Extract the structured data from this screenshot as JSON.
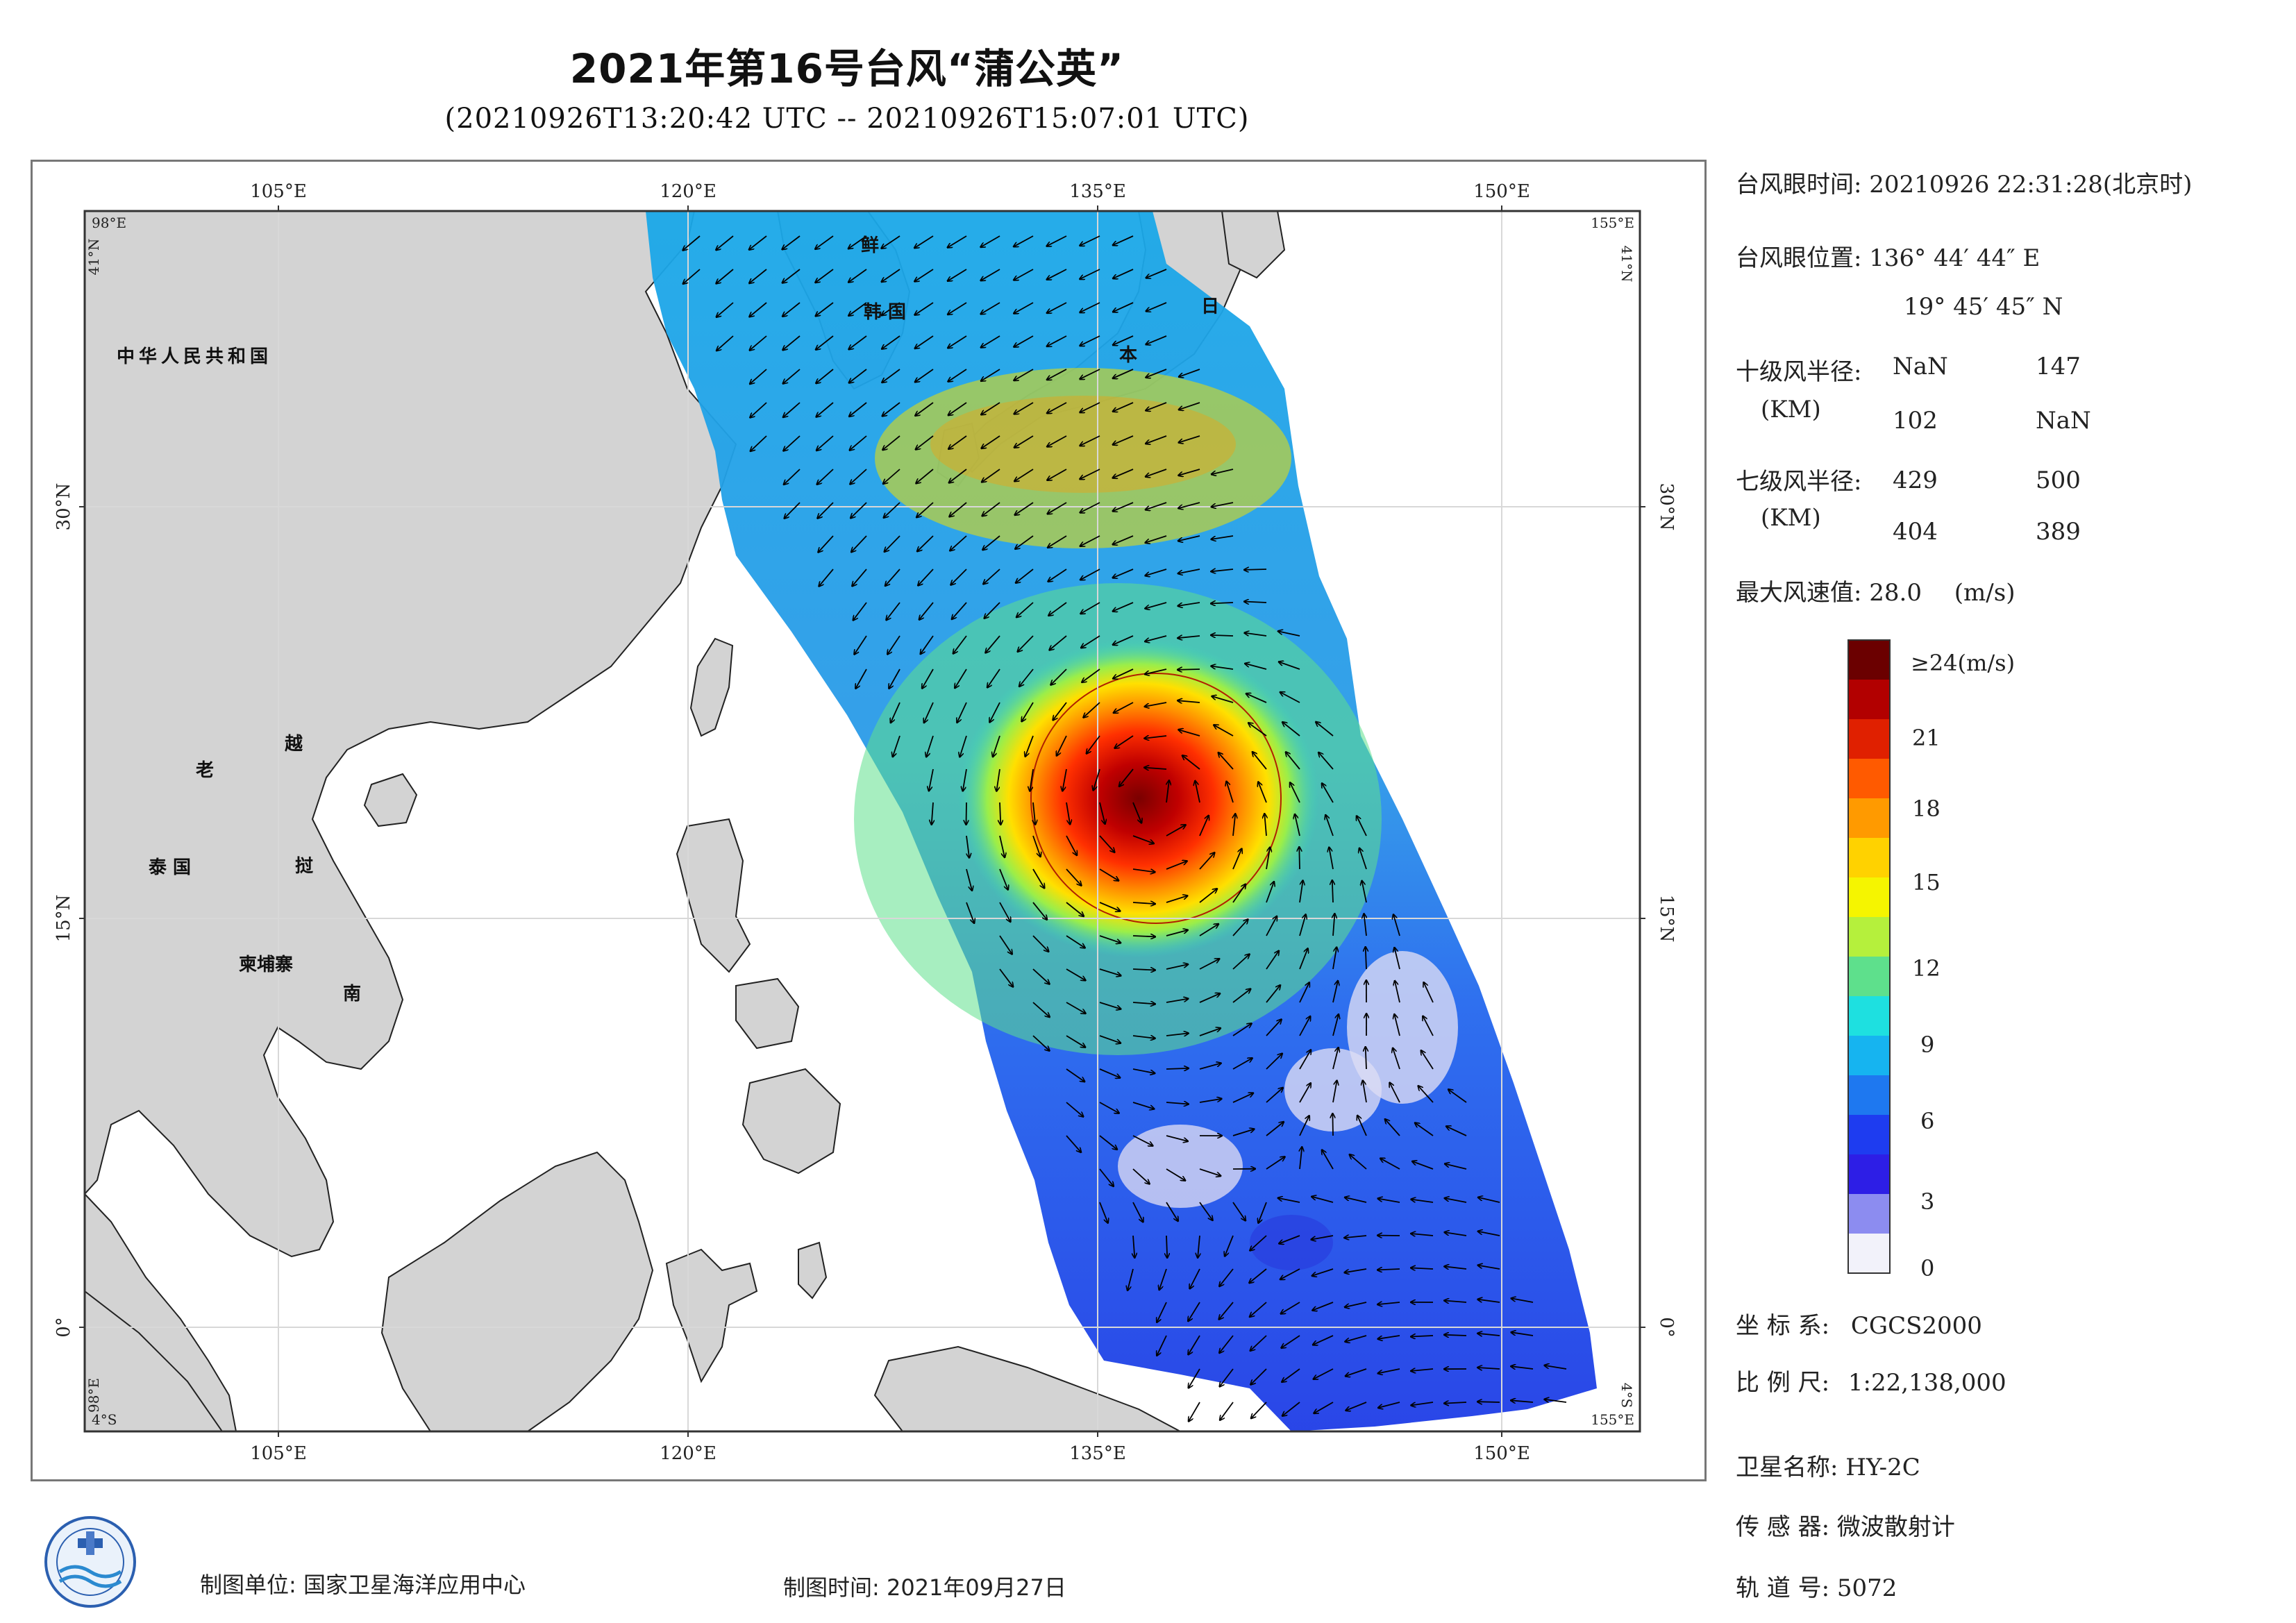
{
  "title": "2021年第16号台风“蒲公英”",
  "subtitle": "(20210926T13:20:42 UTC -- 20210926T15:07:01 UTC)",
  "map": {
    "lon_ticks": [
      "105°E",
      "120°E",
      "135°E",
      "150°E"
    ],
    "lat_ticks": [
      "30°N",
      "15°N",
      "0°"
    ],
    "corner_labels": {
      "top_left_lon": "98°E",
      "top_left_lat": "41°N",
      "top_right_lon": "155°E",
      "top_right_lat": "41°N",
      "bottom_left_lon": "98°E",
      "bottom_left_lat": "4°S",
      "bottom_right_lon": "155°E",
      "bottom_right_lat": "4°S"
    },
    "place_labels": [
      "中华人民共和国",
      "老",
      "越",
      "泰 国",
      "挝",
      "柬埔寨",
      "南",
      "鲜",
      "韩 国",
      "日",
      "本"
    ]
  },
  "info": {
    "eye_time_label": "台风眼时间:",
    "eye_time_value": "20210926 22:31:28(北京时)",
    "eye_pos_label": "台风眼位置:",
    "eye_lon": "136° 44′ 44″ E",
    "eye_lat": "19° 45′ 45″ N",
    "r10_label": "十级风半径:",
    "r10_unit": "(KM)",
    "r10_values": [
      "NaN",
      "147",
      "102",
      "NaN"
    ],
    "r7_label": "七级风半径:",
    "r7_unit": "(KM)",
    "r7_values": [
      "429",
      "500",
      "404",
      "389"
    ],
    "max_wind_label": "最大风速值:",
    "max_wind_value": "28.0",
    "max_wind_unit": "(m/s)"
  },
  "colorbar": {
    "top_label": "≥24(m/s)",
    "ticks": [
      "21",
      "18",
      "15",
      "12",
      "9",
      "6",
      "3",
      "0"
    ],
    "colors": [
      "#6b0000",
      "#b20000",
      "#e02000",
      "#ff5a00",
      "#ff9a00",
      "#ffd200",
      "#f5f500",
      "#b5f03c",
      "#5ee08c",
      "#1ee0e0",
      "#16b4f0",
      "#1e78f0",
      "#1e3cf0",
      "#2d1ee6",
      "#8c8cf0",
      "#f2f2fa"
    ]
  },
  "meta": {
    "crs_label": "坐 标 系:",
    "crs_value": "CGCS2000",
    "scale_label": "比 例 尺:",
    "scale_value": "1:22,138,000",
    "sat_label": "卫星名称:",
    "sat_value": "HY-2C",
    "sensor_label": "传 感 器:",
    "sensor_value": "微波散射计",
    "orbit_label": "轨 道 号:",
    "orbit_value": "5072"
  },
  "footer": {
    "producer_label": "制图单位:",
    "producer_value": "国家卫星海洋应用中心",
    "date_label": "制图时间:",
    "date_value": "2021年09月27日"
  }
}
